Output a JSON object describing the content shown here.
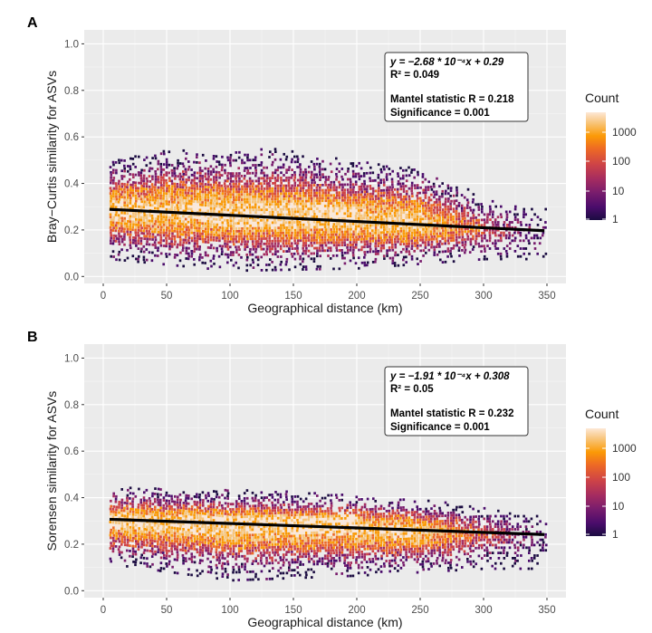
{
  "panels": [
    {
      "letter": "A",
      "annotation": {
        "equation": "y = −2.68 * 10⁻⁴x + 0.29",
        "r2": "R² = 0.049",
        "mantel": "Mantel statistic R = 0.218",
        "significance": "Significance = 0.001"
      },
      "legend": {
        "title": "Count",
        "labels": [
          "1000",
          "100",
          "10",
          "1"
        ]
      }
    },
    {
      "letter": "B",
      "annotation": {
        "equation": "y = −1.91 * 10⁻⁴x + 0.308",
        "r2": "R² = 0.05",
        "mantel": "Mantel statistic R = 0.232",
        "significance": "Significance = 0.001"
      },
      "legend": {
        "title": "Count",
        "labels": [
          "1000",
          "100",
          "10",
          "1"
        ]
      }
    }
  ],
  "colors": {
    "panel_background": "#ebebeb",
    "grid": "#ffffff",
    "regression_line": "#000000",
    "count_scale": [
      "#1b0c41",
      "#4a0c6b",
      "#781c6d",
      "#a52c60",
      "#cf4446",
      "#ed6925",
      "#fb9a06",
      "#f8c478",
      "#fde7d6"
    ]
  },
  "chart_data": [
    {
      "type": "heatmap",
      "title": "",
      "xlabel": "Geographical distance (km)",
      "ylabel": "Bray−Curtis similarity for ASVs",
      "xlim": [
        -15,
        365
      ],
      "ylim": [
        -0.03,
        1.06
      ],
      "x_ticks": [
        0,
        50,
        100,
        150,
        200,
        250,
        300,
        350
      ],
      "y_ticks": [
        0.0,
        0.2,
        0.4,
        0.6,
        0.8,
        1.0
      ],
      "y_tick_labels": [
        "0.0",
        "0.2",
        "0.4",
        "0.6",
        "0.8",
        "1.0"
      ],
      "grid": true,
      "legend": {
        "position": "right",
        "title": "Count",
        "scale": "log10",
        "breaks": [
          1,
          10,
          100,
          1000
        ]
      },
      "regression": {
        "slope": -0.000268,
        "intercept": 0.29,
        "x_range": [
          5,
          348
        ]
      },
      "hexbin_density": {
        "x_range": [
          5,
          350
        ],
        "center_profile": [
          [
            5,
            0.29
          ],
          [
            100,
            0.27
          ],
          [
            200,
            0.245
          ],
          [
            300,
            0.21
          ],
          [
            350,
            0.2
          ]
        ],
        "y_min_profile": [
          [
            5,
            0.08
          ],
          [
            100,
            0.03
          ],
          [
            200,
            0.04
          ],
          [
            300,
            0.08
          ],
          [
            350,
            0.08
          ]
        ],
        "y_max_profile": [
          [
            5,
            0.5
          ],
          [
            50,
            0.55
          ],
          [
            100,
            0.56
          ],
          [
            150,
            0.55
          ],
          [
            200,
            0.5
          ],
          [
            250,
            0.47
          ],
          [
            300,
            0.35
          ],
          [
            350,
            0.3
          ]
        ],
        "peak_count_region": [
          [
            80,
            200
          ],
          [
            0.22,
            0.32
          ]
        ]
      }
    },
    {
      "type": "heatmap",
      "title": "",
      "xlabel": "Geographical distance (km)",
      "ylabel": "Sorensen similarity for ASVs",
      "xlim": [
        -15,
        365
      ],
      "ylim": [
        -0.03,
        1.06
      ],
      "x_ticks": [
        0,
        50,
        100,
        150,
        200,
        250,
        300,
        350
      ],
      "y_ticks": [
        0.0,
        0.2,
        0.4,
        0.6,
        0.8,
        1.0
      ],
      "y_tick_labels": [
        "0.0",
        "0.2",
        "0.4",
        "0.6",
        "0.8",
        "1.0"
      ],
      "grid": true,
      "legend": {
        "position": "right",
        "title": "Count",
        "scale": "log10",
        "breaks": [
          1,
          10,
          100,
          1000
        ]
      },
      "regression": {
        "slope": -0.000191,
        "intercept": 0.308,
        "x_range": [
          5,
          348
        ]
      },
      "hexbin_density": {
        "x_range": [
          5,
          350
        ],
        "center_profile": [
          [
            5,
            0.305
          ],
          [
            100,
            0.29
          ],
          [
            200,
            0.275
          ],
          [
            300,
            0.25
          ],
          [
            350,
            0.24
          ]
        ],
        "y_min_profile": [
          [
            5,
            0.12
          ],
          [
            100,
            0.05
          ],
          [
            200,
            0.07
          ],
          [
            300,
            0.1
          ],
          [
            350,
            0.1
          ]
        ],
        "y_max_profile": [
          [
            5,
            0.45
          ],
          [
            100,
            0.44
          ],
          [
            200,
            0.42
          ],
          [
            250,
            0.4
          ],
          [
            300,
            0.36
          ],
          [
            350,
            0.32
          ]
        ],
        "peak_count_region": [
          [
            60,
            200
          ],
          [
            0.25,
            0.33
          ]
        ]
      }
    }
  ]
}
